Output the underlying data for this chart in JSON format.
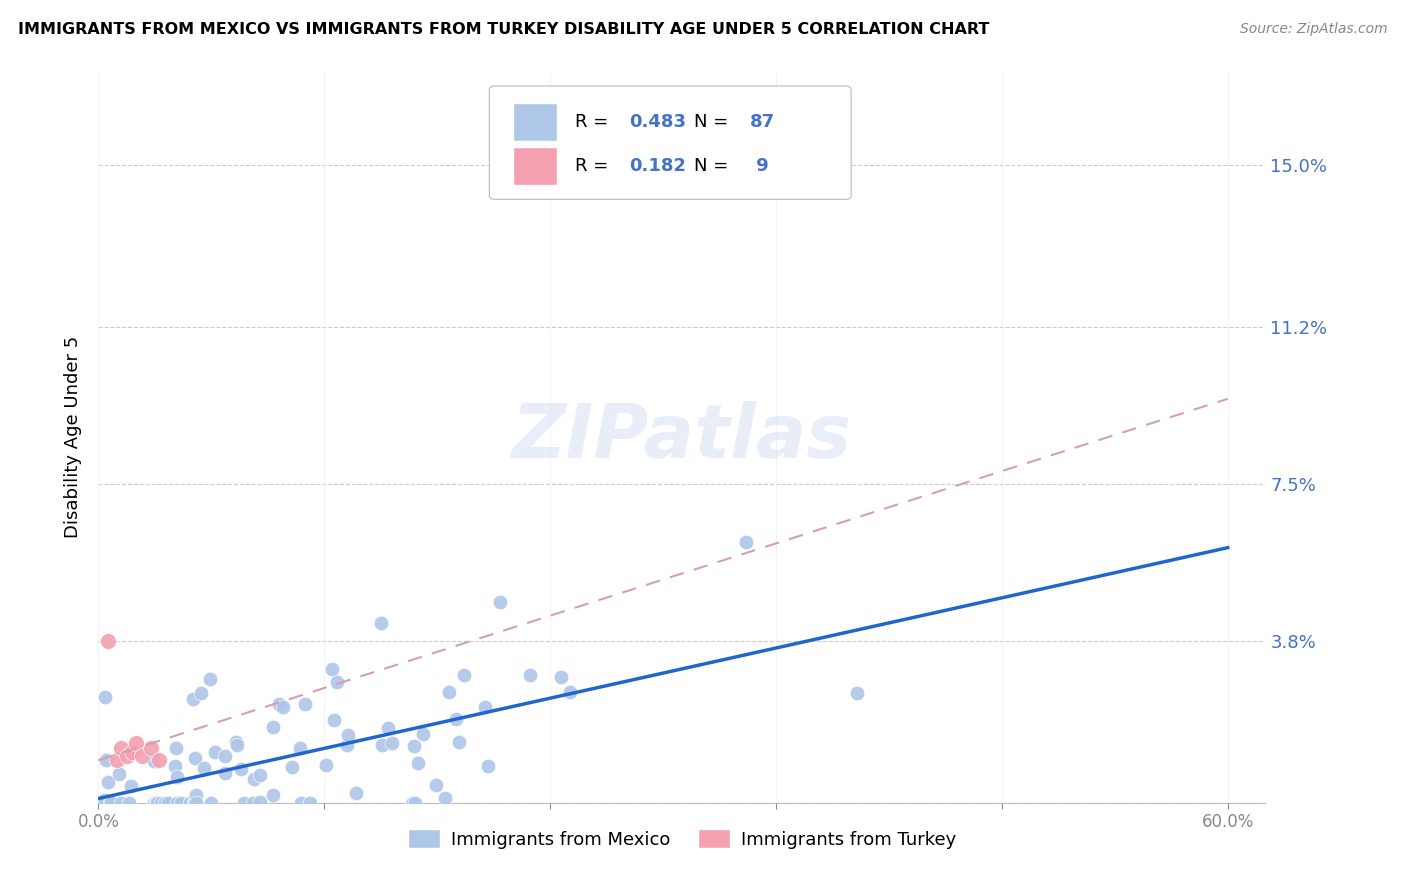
{
  "title": "IMMIGRANTS FROM MEXICO VS IMMIGRANTS FROM TURKEY DISABILITY AGE UNDER 5 CORRELATION CHART",
  "source": "Source: ZipAtlas.com",
  "ylabel": "Disability Age Under 5",
  "ytick_vals": [
    0.0,
    0.038,
    0.075,
    0.112,
    0.15
  ],
  "ytick_labels": [
    "",
    "3.8%",
    "7.5%",
    "11.2%",
    "15.0%"
  ],
  "xlim": [
    0.0,
    0.62
  ],
  "ylim": [
    0.0,
    0.172
  ],
  "legend_mexico_R": "0.483",
  "legend_mexico_N": "87",
  "legend_turkey_R": "0.182",
  "legend_turkey_N": " 9",
  "mexico_color": "#aec6e8",
  "turkey_color": "#f4a0b0",
  "mexico_line_color": "#2266cc",
  "turkey_line_color": "#d4a0b0",
  "watermark": "ZIPatlas",
  "mexico_trendline_x": [
    0.0,
    0.6
  ],
  "mexico_trendline_y": [
    0.001,
    0.06
  ],
  "turkey_trendline_x": [
    0.0,
    0.6
  ],
  "turkey_trendline_y": [
    0.01,
    0.095
  ]
}
